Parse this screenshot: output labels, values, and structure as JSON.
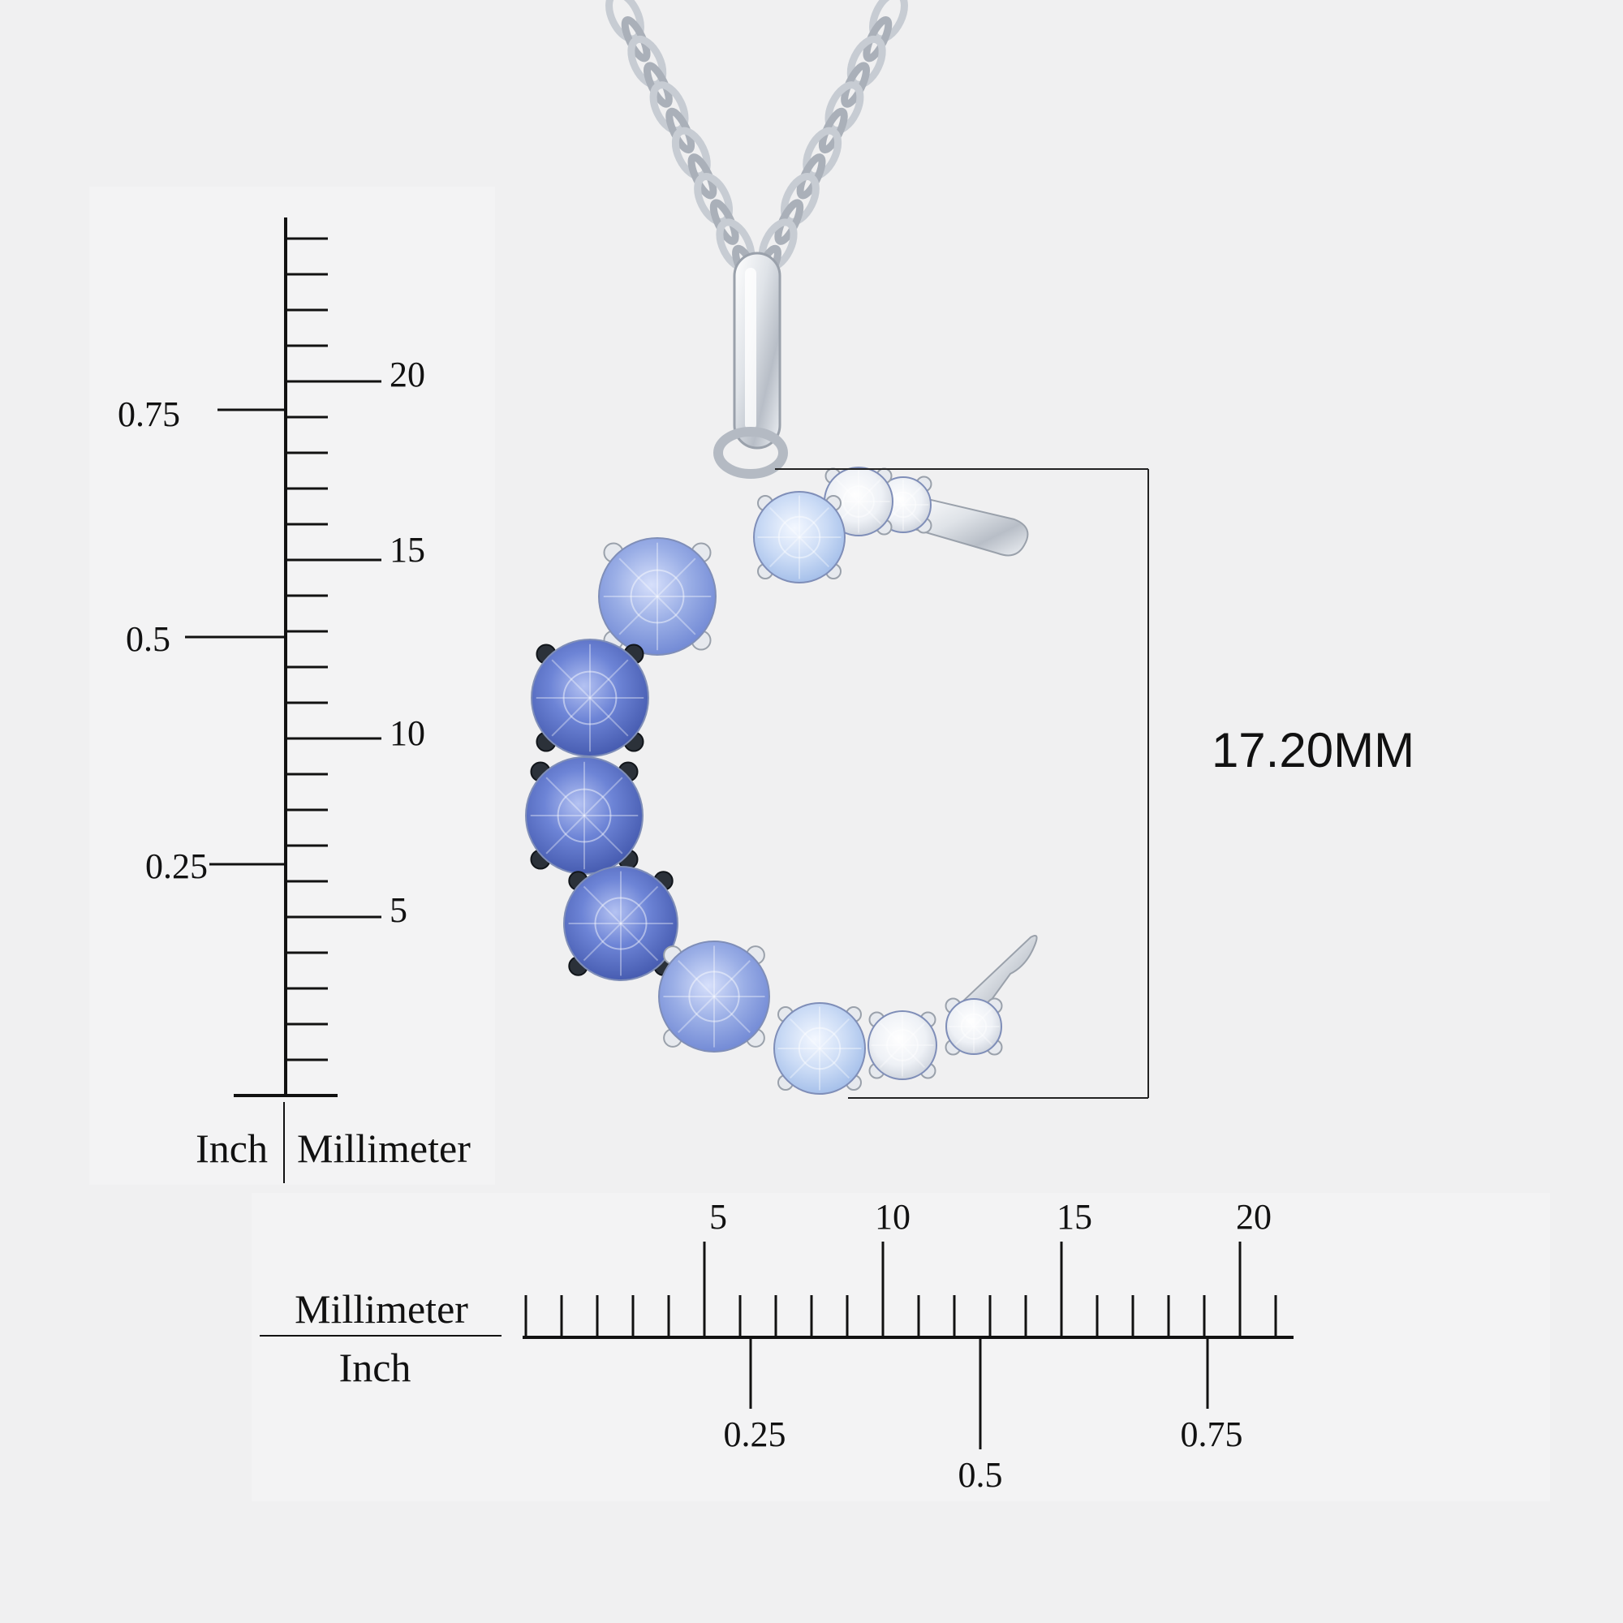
{
  "vertical_ruler": {
    "mm_labels": [
      "20",
      "15",
      "10",
      "5"
    ],
    "inch_labels": [
      "0.75",
      "0.5",
      "0.25"
    ],
    "left_caption": "Inch",
    "right_caption": "Millimeter"
  },
  "horizontal_ruler": {
    "mm_labels": [
      "5",
      "10",
      "15",
      "20"
    ],
    "inch_labels": [
      "0.25",
      "0.5",
      "0.75"
    ],
    "top_caption": "Millimeter",
    "bottom_caption": "Inch"
  },
  "dimension": {
    "label": "17.20MM"
  },
  "colors": {
    "background": "#f0f0f1",
    "metal": "#d7dbe0",
    "dark_prong": "#2b3139",
    "gem_dark": "#5a72c9",
    "gem_mid": "#8ea2e0",
    "gem_light": "#bdd1f2",
    "gem_clear": "#f4f6fb"
  },
  "icons": {
    "chain": "chain-icon",
    "pendant": "crescent-moon-pendant-icon"
  }
}
